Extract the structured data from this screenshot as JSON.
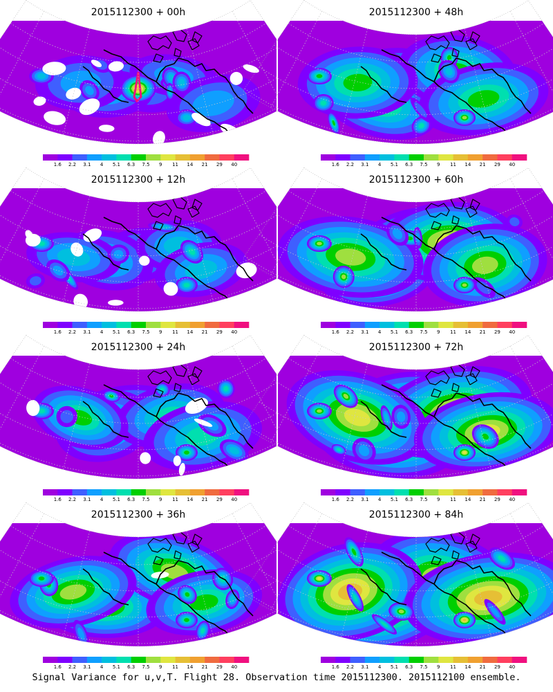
{
  "panels": [
    {
      "id": "p00",
      "title": "2015112300 + 00h",
      "lead": "00h",
      "intensity": 0.15,
      "gaps": 0.95
    },
    {
      "id": "p12",
      "title": "2015112300 + 12h",
      "lead": "12h",
      "intensity": 0.3,
      "gaps": 0.65
    },
    {
      "id": "p24",
      "title": "2015112300 + 24h",
      "lead": "24h",
      "intensity": 0.45,
      "gaps": 0.45
    },
    {
      "id": "p36",
      "title": "2015112300 + 36h",
      "lead": "36h",
      "intensity": 0.58,
      "gaps": 0.1
    },
    {
      "id": "p48",
      "title": "2015112300 + 48h",
      "lead": "48h",
      "intensity": 0.6,
      "gaps": 0.0
    },
    {
      "id": "p60",
      "title": "2015112300 + 60h",
      "lead": "60h",
      "intensity": 0.7,
      "gaps": 0.0
    },
    {
      "id": "p72",
      "title": "2015112300 + 72h",
      "lead": "72h",
      "intensity": 0.8,
      "gaps": 0.0
    },
    {
      "id": "p84",
      "title": "2015112300 + 84h",
      "lead": "84h",
      "intensity": 0.92,
      "gaps": 0.0
    }
  ],
  "colorbar": {
    "labels": [
      "1.6",
      "2.2",
      "3.1",
      "4",
      "5.1",
      "6.3",
      "7.5",
      "9",
      "11",
      "14",
      "21",
      "29",
      "40"
    ],
    "colors": [
      "#9f00df",
      "#7f00ff",
      "#3f5fff",
      "#0f9fff",
      "#00bfdf",
      "#00dfaf",
      "#00cf00",
      "#9fdf3f",
      "#dfe640",
      "#e6bf35",
      "#f0a030",
      "#f06b3f",
      "#ff3f5f",
      "#f0107f"
    ]
  },
  "caption": "Signal Variance for u,v,T. Flight 28. Observation time 2015112300. 2015112100 ensemble."
}
